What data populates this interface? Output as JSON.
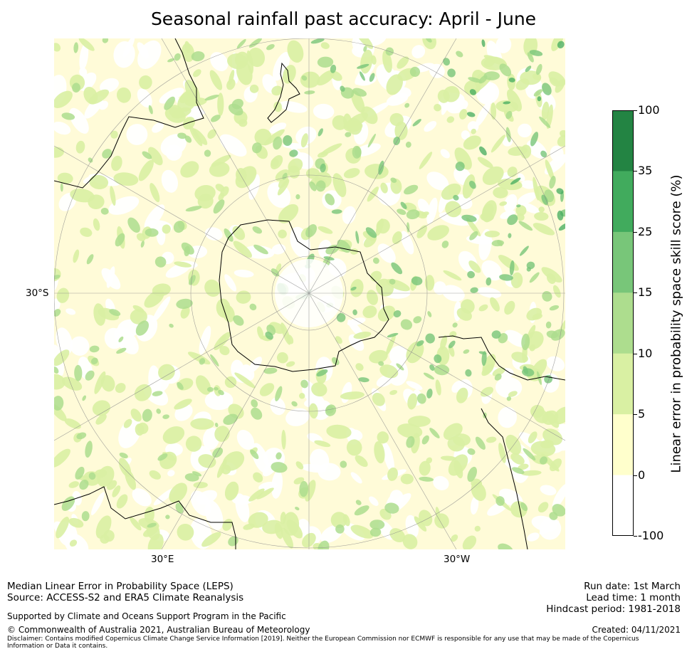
{
  "title": "Seasonal rainfall past accuracy: April - June",
  "map": {
    "labels": {
      "lat_left": "30°S",
      "lon_30e": "30°E",
      "lon_30w": "30°W"
    },
    "colors": {
      "white": "#ffffff",
      "light_yellow": "#ffffcc",
      "pale_green": "#d9f0a3",
      "light_green": "#addd8e",
      "mid_green": "#78c679",
      "green": "#41ab5d",
      "dark_green": "#238443",
      "coastline": "#000000"
    }
  },
  "colorbar": {
    "title": "Linear error in probability space skill score (%)",
    "ticks": [
      "100",
      "35",
      "25",
      "15",
      "10",
      "5",
      "0",
      "-100"
    ],
    "band_colors": [
      "#238443",
      "#41ab5d",
      "#78c679",
      "#addd8e",
      "#d9f0a3",
      "#ffffcc",
      "#ffffff"
    ]
  },
  "footer": {
    "left_line1": "Median Linear Error in Probability Space (LEPS)",
    "left_line2": "Source: ACCESS-S2 and ERA5 Climate Reanalysis",
    "support": "Supported by Climate and Oceans Support Program in the Pacific",
    "copyright": "© Commonwealth of Australia 2021, Australian Bureau of Meteorology",
    "disclaimer": "Disclaimer: Contains modified Copernicus Climate Change Service Information [2019]. Neither the European Commission nor ECMWF is responsible for any use that may be made of the Copernicus Information or Data it contains.",
    "run_date": "Run date: 1st March",
    "lead_time": "Lead time: 1 month",
    "hindcast": "Hindcast period: 1981-2018",
    "created": "Created: 04/11/2021"
  }
}
